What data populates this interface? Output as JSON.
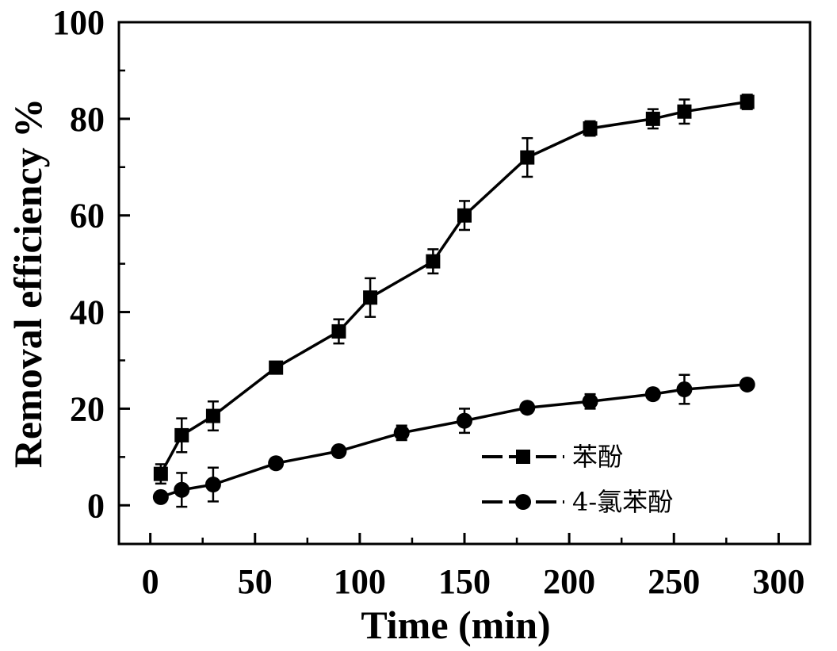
{
  "chart_data": {
    "type": "line",
    "title": "",
    "xlabel": "Time (min)",
    "ylabel": "Removal efficiency %",
    "xlim": [
      -15,
      315
    ],
    "ylim": [
      -8,
      100
    ],
    "xticks": [
      0,
      50,
      100,
      150,
      200,
      250,
      300
    ],
    "yticks": [
      0,
      20,
      40,
      60,
      80,
      100
    ],
    "grid": false,
    "legend_position": "lower-right",
    "error_bars": true,
    "series": [
      {
        "name": "苯酚",
        "marker": "square",
        "color": "#000000",
        "x": [
          5,
          15,
          30,
          60,
          90,
          105,
          135,
          150,
          180,
          210,
          240,
          255,
          285
        ],
        "y": [
          6.5,
          14.5,
          18.5,
          28.5,
          36,
          43,
          50.5,
          60,
          72,
          78,
          80,
          81.5,
          83.5
        ],
        "error": [
          2,
          3.5,
          3,
          1,
          2.5,
          4,
          2.5,
          3,
          4,
          1.5,
          2,
          2.5,
          1.5
        ]
      },
      {
        "name": "4-氯苯酚",
        "marker": "circle",
        "color": "#000000",
        "x": [
          5,
          15,
          30,
          60,
          90,
          120,
          150,
          180,
          210,
          240,
          255,
          285
        ],
        "y": [
          1.7,
          3.2,
          4.3,
          8.7,
          11.2,
          15,
          17.5,
          20.2,
          21.5,
          23,
          24,
          25
        ],
        "error": [
          1,
          3.5,
          3.5,
          1,
          1,
          1.5,
          2.5,
          1,
          1.5,
          1,
          3,
          1
        ]
      }
    ]
  }
}
